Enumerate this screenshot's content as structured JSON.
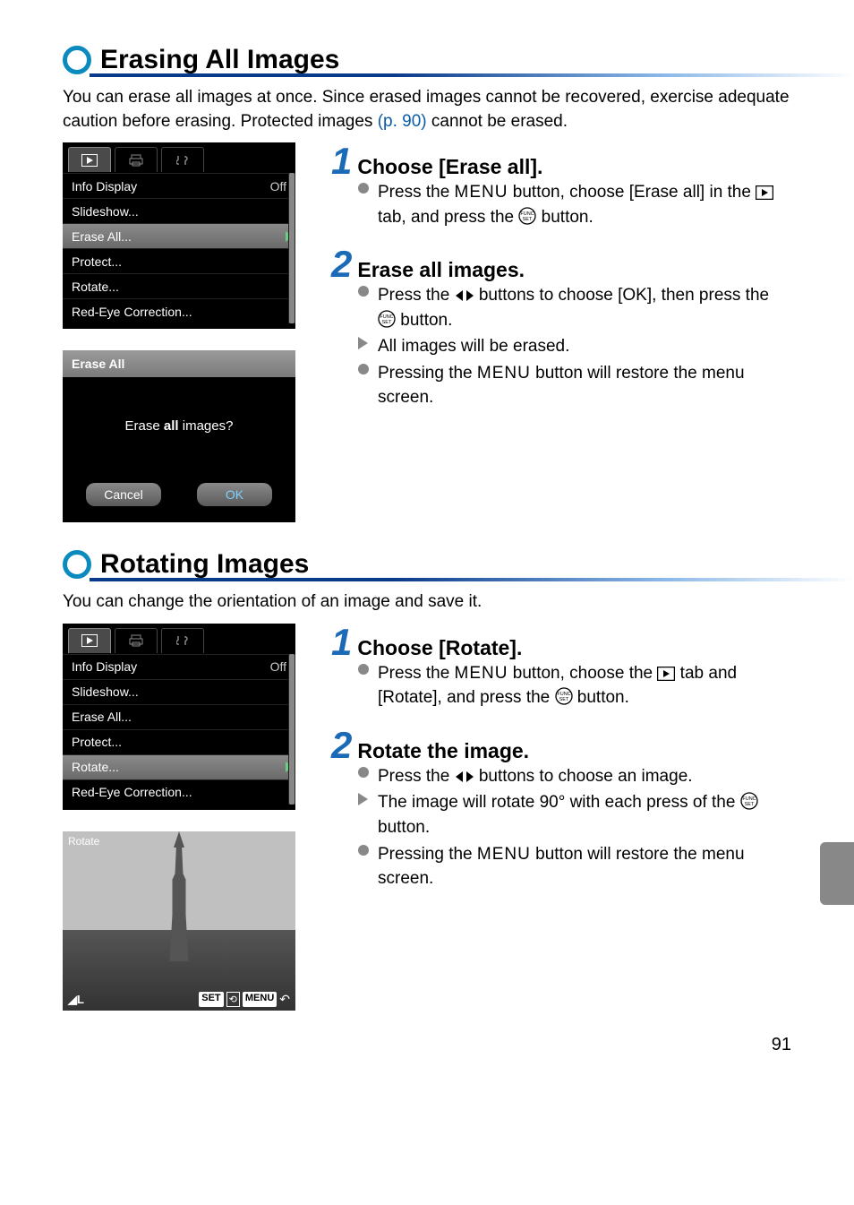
{
  "page_number": "91",
  "colors": {
    "accent_ring": "#0a8abf",
    "step_num": "#1a6ab8",
    "link": "#0a5aa8",
    "rule_dark": "#0a3a8a",
    "rule_light": "#8ab8e8"
  },
  "section1": {
    "title": "Erasing All Images",
    "intro_pre": "You can erase all images at once. Since erased images cannot be recovered, exercise adequate caution before erasing. Protected images ",
    "intro_link": "(p. 90)",
    "intro_post": " cannot be erased.",
    "steps": [
      {
        "num": "1",
        "title": "Choose [Erase all].",
        "items": [
          {
            "marker": "circ",
            "segments": [
              {
                "t": "Press the "
              },
              {
                "t": "MENU",
                "style": "menu"
              },
              {
                "t": " button, choose [Erase all] in the "
              },
              {
                "icon": "play-box"
              },
              {
                "t": " tab, and press the "
              },
              {
                "icon": "func"
              },
              {
                "t": " button."
              }
            ]
          }
        ]
      },
      {
        "num": "2",
        "title": "Erase all images.",
        "items": [
          {
            "marker": "circ",
            "segments": [
              {
                "t": "Press the "
              },
              {
                "icon": "lr"
              },
              {
                "t": " buttons to choose [OK], then press the "
              },
              {
                "icon": "func"
              },
              {
                "t": " button."
              }
            ]
          },
          {
            "marker": "tri",
            "segments": [
              {
                "t": "All images will be erased."
              }
            ]
          },
          {
            "marker": "circ",
            "segments": [
              {
                "t": "Pressing the "
              },
              {
                "t": "MENU",
                "style": "menu"
              },
              {
                "t": " button will restore the menu screen."
              }
            ]
          }
        ]
      }
    ],
    "lcd": {
      "selected_index": 2,
      "rows": [
        {
          "label": "Info Display",
          "value": "Off",
          "val_arrow_left": true
        },
        {
          "label": "Slideshow...",
          "value": ""
        },
        {
          "label": "Erase All...",
          "value": ""
        },
        {
          "label": "Protect...",
          "value": ""
        },
        {
          "label": "Rotate...",
          "value": ""
        },
        {
          "label": "Red-Eye Correction...",
          "value": ""
        }
      ]
    },
    "dialog": {
      "title": "Erase All",
      "msg": "Erase all images?",
      "cancel": "Cancel",
      "ok": "OK"
    }
  },
  "section2": {
    "title": "Rotating Images",
    "intro": "You can change the orientation of an image and save it.",
    "steps": [
      {
        "num": "1",
        "title": "Choose [Rotate].",
        "items": [
          {
            "marker": "circ",
            "segments": [
              {
                "t": "Press the "
              },
              {
                "t": "MENU",
                "style": "menu"
              },
              {
                "t": " button, choose the "
              },
              {
                "icon": "play-box"
              },
              {
                "t": " tab and [Rotate], and press the "
              },
              {
                "icon": "func"
              },
              {
                "t": " button."
              }
            ]
          }
        ]
      },
      {
        "num": "2",
        "title": "Rotate the image.",
        "items": [
          {
            "marker": "circ",
            "segments": [
              {
                "t": "Press the "
              },
              {
                "icon": "lr"
              },
              {
                "t": " buttons to choose an image."
              }
            ]
          },
          {
            "marker": "tri",
            "segments": [
              {
                "t": "The image will rotate 90° with each press of the "
              },
              {
                "icon": "func"
              },
              {
                "t": " button."
              }
            ]
          },
          {
            "marker": "circ",
            "segments": [
              {
                "t": "Pressing the "
              },
              {
                "t": "MENU",
                "style": "menu"
              },
              {
                "t": " button will restore the menu screen."
              }
            ]
          }
        ]
      }
    ],
    "lcd": {
      "selected_index": 4,
      "rows": [
        {
          "label": "Info Display",
          "value": "Off",
          "val_arrow_left": true
        },
        {
          "label": "Slideshow...",
          "value": ""
        },
        {
          "label": "Erase All...",
          "value": ""
        },
        {
          "label": "Protect...",
          "value": ""
        },
        {
          "label": "Rotate...",
          "value": ""
        },
        {
          "label": "Red-Eye Correction...",
          "value": ""
        }
      ]
    },
    "rotate_screen": {
      "title": "Rotate",
      "bottom_left": "◢L",
      "tags": [
        "SET",
        "⟲",
        "MENU",
        "↶"
      ]
    }
  }
}
